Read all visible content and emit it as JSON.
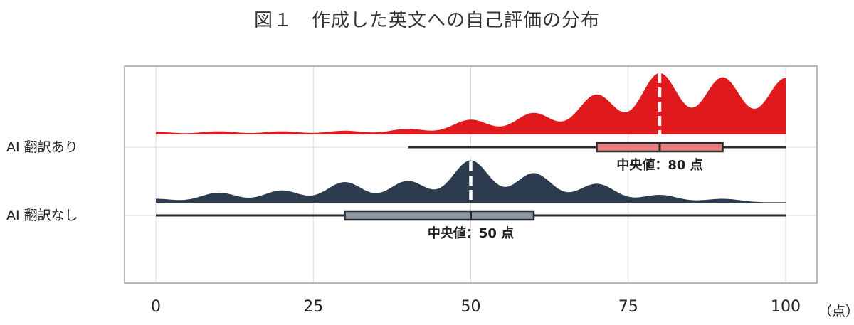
{
  "figure_title": "図１　作成した英文への自己評価の分布",
  "chart_data": {
    "type": "ridgeline-boxplot",
    "xlim": [
      0,
      100
    ],
    "x_ticks": [
      "0",
      "25",
      "50",
      "75",
      "100"
    ],
    "x_tick_values": [
      0,
      25,
      50,
      75,
      100
    ],
    "x_unit": "（点）",
    "grid": true,
    "series": [
      {
        "category": "AI 翻訳あり",
        "color": "#e0191c",
        "box_color": "#e97f81",
        "min": 40,
        "q1": 70,
        "median": 80,
        "q3": 90,
        "max": 100,
        "median_label": "中央値：80 点",
        "density_peaks": [
          {
            "x": 0,
            "h": 0.04
          },
          {
            "x": 10,
            "h": 0.05
          },
          {
            "x": 20,
            "h": 0.05
          },
          {
            "x": 30,
            "h": 0.06
          },
          {
            "x": 40,
            "h": 0.09
          },
          {
            "x": 50,
            "h": 0.24
          },
          {
            "x": 60,
            "h": 0.35
          },
          {
            "x": 70,
            "h": 0.65
          },
          {
            "x": 80,
            "h": 1.0
          },
          {
            "x": 90,
            "h": 0.93
          },
          {
            "x": 100,
            "h": 0.92
          }
        ]
      },
      {
        "category": "AI 翻訳なし",
        "color": "#2d3b4e",
        "box_color": "#8f98a5",
        "min": 0,
        "q1": 30,
        "median": 50,
        "q3": 60,
        "max": 100,
        "median_label": "中央値：50 点",
        "density_peaks": [
          {
            "x": 0,
            "h": 0.07
          },
          {
            "x": 10,
            "h": 0.18
          },
          {
            "x": 20,
            "h": 0.22
          },
          {
            "x": 30,
            "h": 0.37
          },
          {
            "x": 40,
            "h": 0.39
          },
          {
            "x": 50,
            "h": 0.76
          },
          {
            "x": 60,
            "h": 0.53
          },
          {
            "x": 70,
            "h": 0.34
          },
          {
            "x": 80,
            "h": 0.14
          },
          {
            "x": 90,
            "h": 0.07
          },
          {
            "x": 100,
            "h": 0.01
          }
        ]
      }
    ]
  }
}
